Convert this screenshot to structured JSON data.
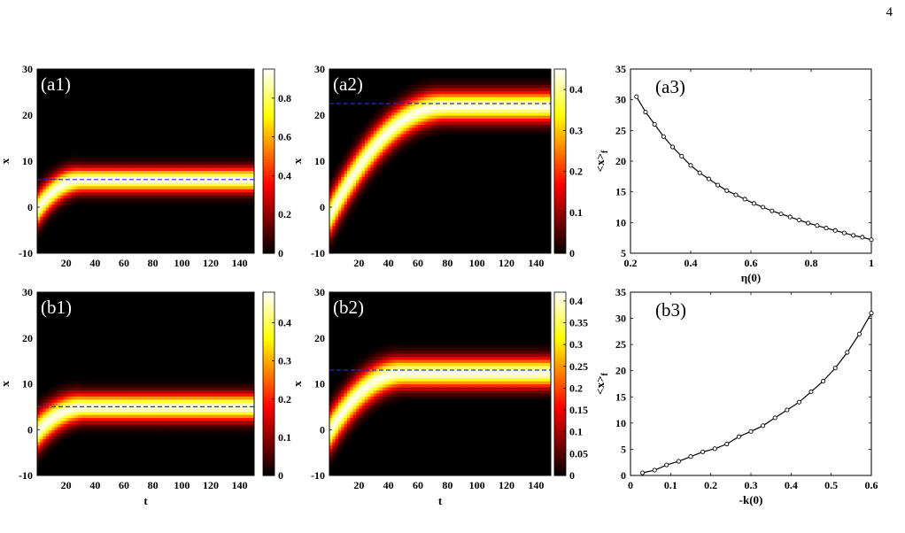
{
  "page_number": "4",
  "chart_data": [
    {
      "id": "a1",
      "type": "heatmap",
      "label": "(a1)",
      "xlabel": "",
      "ylabel": "x",
      "xlim": [
        0,
        150
      ],
      "ylim": [
        -10,
        30
      ],
      "xticks": [
        20,
        40,
        60,
        80,
        100,
        120,
        140
      ],
      "yticks": [
        -10,
        0,
        10,
        20,
        30
      ],
      "colorbar": {
        "min": 0,
        "max": 0.95,
        "ticks": [
          0,
          0.2,
          0.4,
          0.6,
          0.8
        ]
      },
      "beam": {
        "x0": -0.5,
        "x_final": 6,
        "t_end": 30,
        "width": 1.8,
        "peak": 0.95
      },
      "reference_line": {
        "x": 6,
        "color": "#1f2fd8",
        "style": "dashed"
      }
    },
    {
      "id": "a2",
      "type": "heatmap",
      "label": "(a2)",
      "xlabel": "",
      "ylabel": "x",
      "xlim": [
        0,
        150
      ],
      "ylim": [
        -10,
        30
      ],
      "xticks": [
        20,
        40,
        60,
        80,
        100,
        120,
        140
      ],
      "yticks": [
        -10,
        0,
        10,
        20,
        30
      ],
      "colorbar": {
        "min": 0,
        "max": 0.45,
        "ticks": [
          0,
          0.1,
          0.2,
          0.3,
          0.4
        ]
      },
      "beam": {
        "x0": -2,
        "x_final": 22,
        "t_end": 78,
        "width": 2.2,
        "peak": 0.45
      },
      "reference_line": {
        "x": 22.5,
        "color": "#1f2fd8",
        "style": "dashed"
      }
    },
    {
      "id": "a3",
      "type": "line",
      "label": "(a3)",
      "xlabel": "η(0)",
      "ylabel": "<x>",
      "ylabel_subscript": "f",
      "xlim": [
        0.2,
        1.0
      ],
      "ylim": [
        5,
        35
      ],
      "xticks": [
        0.2,
        0.4,
        0.6,
        0.8,
        1.0
      ],
      "xtick_labels": [
        "0.2",
        "0.4",
        "0.6",
        "0.8",
        "1"
      ],
      "yticks": [
        5,
        10,
        15,
        20,
        25,
        30,
        35
      ],
      "series": [
        {
          "x": [
            0.22,
            0.25,
            0.28,
            0.31,
            0.34,
            0.37,
            0.4,
            0.43,
            0.46,
            0.49,
            0.52,
            0.55,
            0.58,
            0.61,
            0.64,
            0.67,
            0.7,
            0.73,
            0.76,
            0.79,
            0.82,
            0.85,
            0.88,
            0.91,
            0.94,
            0.97,
            1.0
          ],
          "y": [
            30.5,
            28.0,
            26.0,
            24.0,
            22.3,
            20.8,
            19.3,
            18.1,
            17.1,
            16.1,
            15.2,
            14.5,
            13.8,
            13.1,
            12.5,
            11.9,
            11.4,
            10.9,
            10.4,
            9.9,
            9.5,
            9.1,
            8.7,
            8.3,
            7.9,
            7.6,
            7.2
          ]
        }
      ]
    },
    {
      "id": "b1",
      "type": "heatmap",
      "label": "(b1)",
      "xlabel": "t",
      "ylabel": "x",
      "xlim": [
        0,
        150
      ],
      "ylim": [
        -10,
        30
      ],
      "xticks": [
        20,
        40,
        60,
        80,
        100,
        120,
        140
      ],
      "yticks": [
        -10,
        0,
        10,
        20,
        30
      ],
      "colorbar": {
        "min": 0,
        "max": 0.48,
        "ticks": [
          0,
          0.1,
          0.2,
          0.3,
          0.4
        ]
      },
      "beam": {
        "x0": -0.5,
        "x_final": 5,
        "t_end": 32,
        "width": 2.0,
        "peak": 0.48
      },
      "reference_line": {
        "x": 5,
        "color": "#1f2fd8",
        "style": "dashed"
      }
    },
    {
      "id": "b2",
      "type": "heatmap",
      "label": "(b2)",
      "xlabel": "t",
      "ylabel": "x",
      "xlim": [
        0,
        150
      ],
      "ylim": [
        -10,
        30
      ],
      "xticks": [
        20,
        40,
        60,
        80,
        100,
        120,
        140
      ],
      "yticks": [
        -10,
        0,
        10,
        20,
        30
      ],
      "colorbar": {
        "min": 0,
        "max": 0.42,
        "ticks": [
          0,
          0.05,
          0.1,
          0.15,
          0.2,
          0.25,
          0.3,
          0.35,
          0.4
        ]
      },
      "beam": {
        "x0": -0.5,
        "x_final": 12.5,
        "t_end": 50,
        "width": 2.2,
        "peak": 0.42
      },
      "reference_line": {
        "x": 13,
        "color": "#1f2fd8",
        "style": "dashed"
      }
    },
    {
      "id": "b3",
      "type": "line",
      "label": "(b3)",
      "xlabel": "-k(0)",
      "ylabel": "<x>",
      "ylabel_subscript": "f",
      "xlim": [
        0,
        0.6
      ],
      "ylim": [
        0,
        35
      ],
      "xticks": [
        0,
        0.1,
        0.2,
        0.3,
        0.4,
        0.5,
        0.6
      ],
      "xtick_labels": [
        "0",
        "0.1",
        "0.2",
        "0.3",
        "0.4",
        "0.5",
        "0.6"
      ],
      "yticks": [
        0,
        5,
        10,
        15,
        20,
        25,
        30,
        35
      ],
      "series": [
        {
          "x": [
            0.03,
            0.06,
            0.09,
            0.12,
            0.15,
            0.18,
            0.21,
            0.24,
            0.27,
            0.3,
            0.33,
            0.36,
            0.39,
            0.42,
            0.45,
            0.48,
            0.51,
            0.54,
            0.57,
            0.6
          ],
          "y": [
            0.5,
            1.0,
            2.0,
            2.7,
            3.6,
            4.5,
            5.1,
            6.0,
            7.4,
            8.4,
            9.5,
            11.0,
            12.5,
            14.0,
            16.0,
            18.0,
            20.5,
            23.5,
            27.0,
            31.0
          ]
        }
      ]
    }
  ]
}
